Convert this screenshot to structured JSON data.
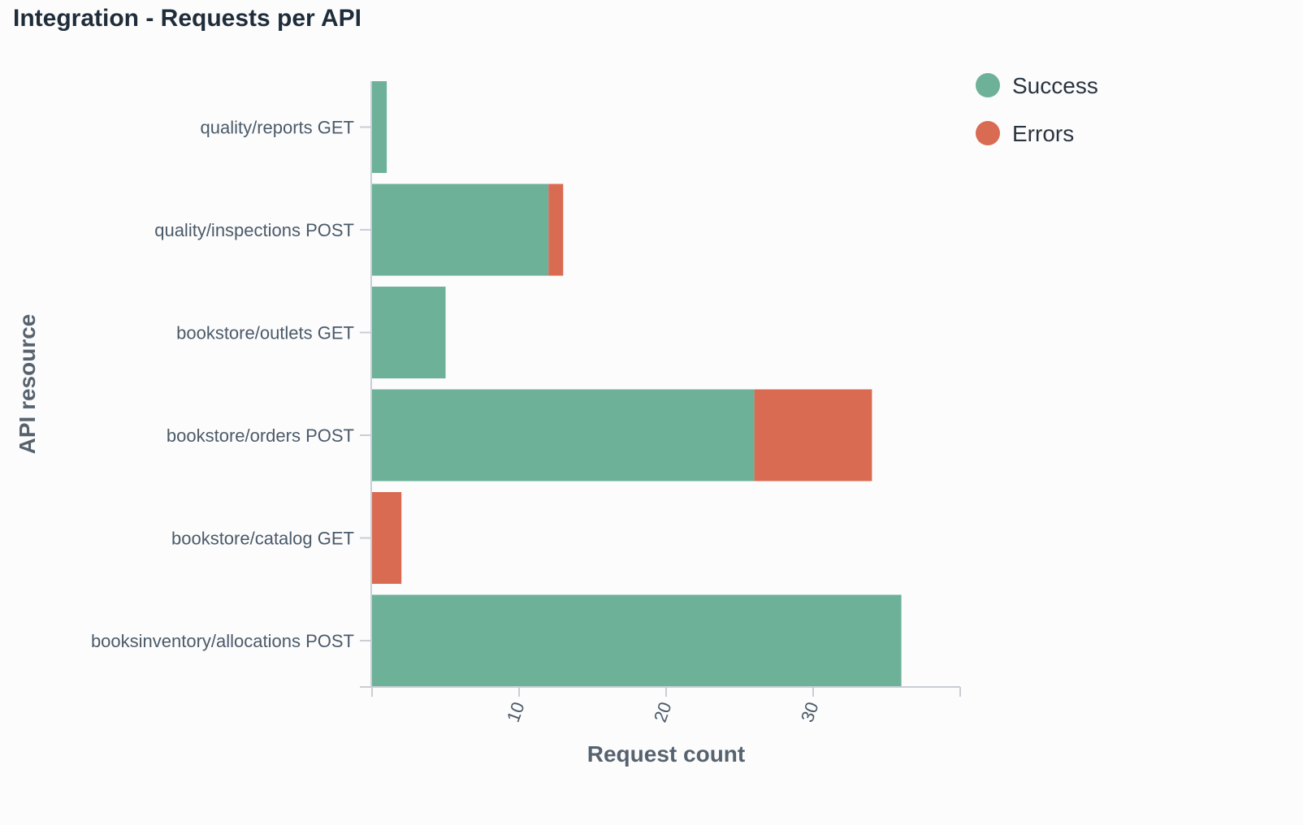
{
  "chart_data": {
    "type": "bar",
    "orientation": "horizontal",
    "stacked": true,
    "title": "Integration - Requests per API",
    "xlabel": "Request count",
    "ylabel": "API resource",
    "categories": [
      "quality/reports GET",
      "quality/inspections POST",
      "bookstore/outlets GET",
      "bookstore/orders POST",
      "bookstore/catalog GET",
      "booksinventory/allocations POST"
    ],
    "series": [
      {
        "name": "Success",
        "color": "#6db199",
        "values": [
          1,
          12,
          5,
          26,
          0,
          36
        ]
      },
      {
        "name": "Errors",
        "color": "#d96b53",
        "values": [
          0,
          1,
          0,
          8,
          2,
          0
        ]
      }
    ],
    "xlim": [
      0,
      40
    ],
    "xticks": [
      10,
      20,
      30
    ],
    "xtick_labels": [
      "10",
      "20",
      "30"
    ],
    "grid": false,
    "legend_position": "top-right"
  }
}
